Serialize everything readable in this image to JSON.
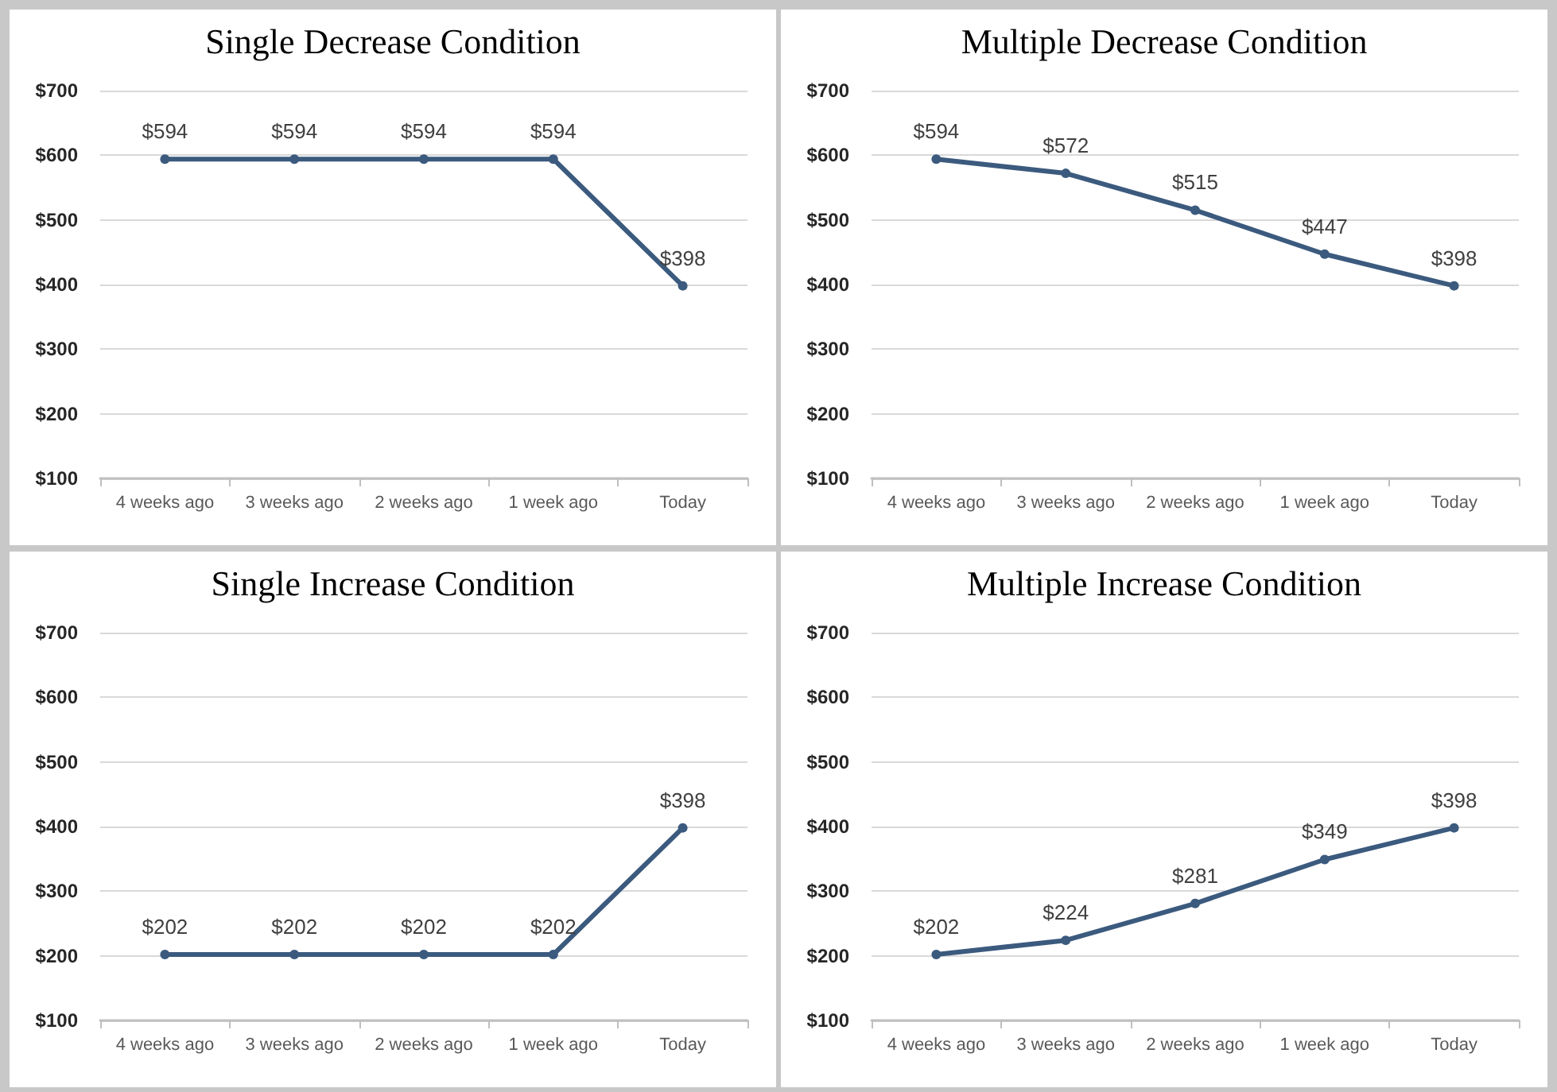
{
  "chart_data": [
    {
      "type": "line",
      "title": "Single Decrease Condition",
      "categories": [
        "4 weeks ago",
        "3 weeks ago",
        "2 weeks ago",
        "1 week ago",
        "Today"
      ],
      "values": [
        594,
        594,
        594,
        594,
        398
      ],
      "value_labels": [
        "$594",
        "$594",
        "$594",
        "$594",
        "$398"
      ],
      "color": "#3b5a7e",
      "marker": "circle",
      "grid": "y",
      "ylim": [
        100,
        700
      ],
      "yticks": [
        {
          "value": 100,
          "label": "$100"
        },
        {
          "value": 200,
          "label": "$200"
        },
        {
          "value": 300,
          "label": "$300"
        },
        {
          "value": 400,
          "label": "$400"
        },
        {
          "value": 500,
          "label": "$500"
        },
        {
          "value": 600,
          "label": "$600"
        },
        {
          "value": 700,
          "label": "$700"
        }
      ]
    },
    {
      "type": "line",
      "title": "Multiple Decrease Condition",
      "categories": [
        "4 weeks ago",
        "3 weeks ago",
        "2 weeks ago",
        "1 week ago",
        "Today"
      ],
      "values": [
        594,
        572,
        515,
        447,
        398
      ],
      "value_labels": [
        "$594",
        "$572",
        "$515",
        "$447",
        "$398"
      ],
      "color": "#3b5a7e",
      "marker": "circle",
      "grid": "y",
      "ylim": [
        100,
        700
      ],
      "yticks": [
        {
          "value": 100,
          "label": "$100"
        },
        {
          "value": 200,
          "label": "$200"
        },
        {
          "value": 300,
          "label": "$300"
        },
        {
          "value": 400,
          "label": "$400"
        },
        {
          "value": 500,
          "label": "$500"
        },
        {
          "value": 600,
          "label": "$600"
        },
        {
          "value": 700,
          "label": "$700"
        }
      ]
    },
    {
      "type": "line",
      "title": "Single Increase Condition",
      "categories": [
        "4 weeks ago",
        "3 weeks ago",
        "2 weeks ago",
        "1 week ago",
        "Today"
      ],
      "values": [
        202,
        202,
        202,
        202,
        398
      ],
      "value_labels": [
        "$202",
        "$202",
        "$202",
        "$202",
        "$398"
      ],
      "color": "#3b5a7e",
      "marker": "circle",
      "grid": "y",
      "ylim": [
        100,
        700
      ],
      "yticks": [
        {
          "value": 100,
          "label": "$100"
        },
        {
          "value": 200,
          "label": "$200"
        },
        {
          "value": 300,
          "label": "$300"
        },
        {
          "value": 400,
          "label": "$400"
        },
        {
          "value": 500,
          "label": "$500"
        },
        {
          "value": 600,
          "label": "$600"
        },
        {
          "value": 700,
          "label": "$700"
        }
      ]
    },
    {
      "type": "line",
      "title": "Multiple Increase Condition",
      "categories": [
        "4 weeks ago",
        "3 weeks ago",
        "2 weeks ago",
        "1 week ago",
        "Today"
      ],
      "values": [
        202,
        224,
        281,
        349,
        398
      ],
      "value_labels": [
        "$202",
        "$224",
        "$281",
        "$349",
        "$398"
      ],
      "color": "#3b5a7e",
      "marker": "circle",
      "grid": "y",
      "ylim": [
        100,
        700
      ],
      "yticks": [
        {
          "value": 100,
          "label": "$100"
        },
        {
          "value": 200,
          "label": "$200"
        },
        {
          "value": 300,
          "label": "$300"
        },
        {
          "value": 400,
          "label": "$400"
        },
        {
          "value": 500,
          "label": "$500"
        },
        {
          "value": 600,
          "label": "$600"
        },
        {
          "value": 700,
          "label": "$700"
        }
      ]
    }
  ]
}
